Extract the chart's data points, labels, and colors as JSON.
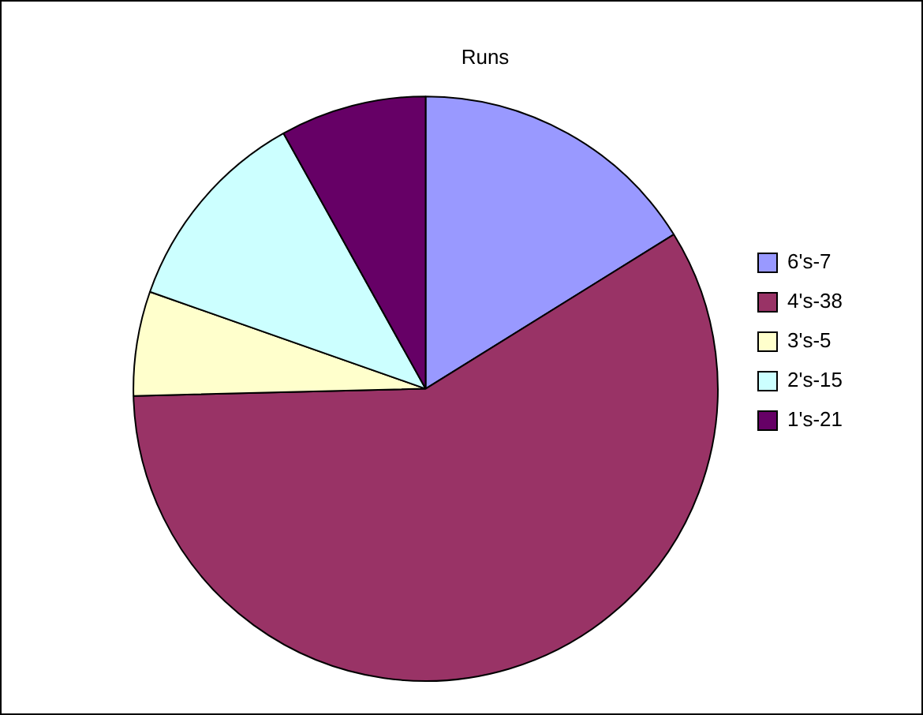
{
  "chart_data": {
    "type": "pie",
    "title": "Runs",
    "categories": [
      "6's-7",
      "4's-38",
      "3's-5",
      "2's-15",
      "1's-21"
    ],
    "values": [
      16.15,
      58.46,
      5.77,
      11.54,
      8.08
    ],
    "colors": [
      "#9999ff",
      "#993366",
      "#ffffcc",
      "#ccffff",
      "#660066"
    ],
    "legend": "right"
  }
}
